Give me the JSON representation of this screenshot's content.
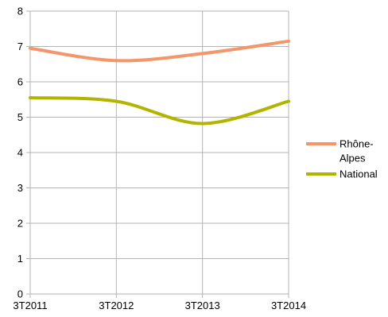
{
  "chart_data": {
    "type": "line",
    "categories": [
      "3T2011",
      "3T2012",
      "3T2013",
      "3T2014"
    ],
    "ylim": [
      0,
      8
    ],
    "yticks": [
      0,
      1,
      2,
      3,
      4,
      5,
      6,
      7,
      8
    ],
    "grid": true,
    "smooth": true,
    "legend_position": "right",
    "series": [
      {
        "name": "Rhône-Alpes",
        "name_lines": [
          "Rhône-",
          "Alpes"
        ],
        "color": "#f4956a",
        "values": [
          6.95,
          6.6,
          6.8,
          7.15
        ]
      },
      {
        "name": "National",
        "name_lines": [
          "National"
        ],
        "color": "#b3b400",
        "values": [
          5.55,
          5.45,
          4.82,
          5.45
        ]
      }
    ]
  }
}
